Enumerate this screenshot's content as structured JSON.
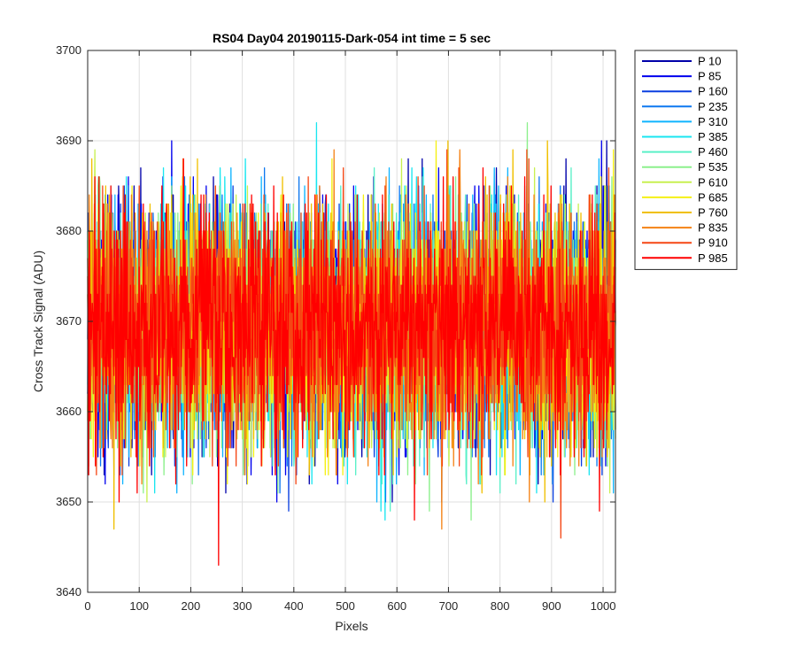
{
  "chart_data": {
    "type": "line",
    "title": "RS04 Day04 20190115-Dark-054 int time = 5 sec",
    "xlabel": "Pixels",
    "ylabel": "Cross Track Signal (ADU)",
    "xlim": [
      0,
      1024
    ],
    "ylim": [
      3640,
      3700
    ],
    "xticks": [
      0,
      100,
      200,
      300,
      400,
      500,
      600,
      700,
      800,
      900,
      1000
    ],
    "yticks": [
      3640,
      3650,
      3660,
      3670,
      3680,
      3690,
      3700
    ],
    "xtick_labels": [
      "0",
      "100",
      "200",
      "300",
      "400",
      "500",
      "600",
      "700",
      "800",
      "900",
      "1000"
    ],
    "ytick_labels": [
      "3640",
      "3650",
      "3660",
      "3670",
      "3680",
      "3690",
      "3700"
    ],
    "grid": true,
    "legend_position": "outside-top-right",
    "noise": {
      "mean": 3669.5,
      "std": 6.5,
      "n_points": 1025,
      "min": 3640,
      "max": 3699
    },
    "series": [
      {
        "name": "P 10",
        "color": "#0000aa",
        "seed": 11
      },
      {
        "name": "P 85",
        "color": "#0000ee",
        "seed": 23
      },
      {
        "name": "P 160",
        "color": "#0a3fe0",
        "seed": 37
      },
      {
        "name": "P 235",
        "color": "#0e78f0",
        "seed": 41
      },
      {
        "name": "P 310",
        "color": "#0fb4ff",
        "seed": 53
      },
      {
        "name": "P 385",
        "color": "#19e6f0",
        "seed": 67
      },
      {
        "name": "P 460",
        "color": "#5af0c8",
        "seed": 71
      },
      {
        "name": "P 535",
        "color": "#8cf08c",
        "seed": 83
      },
      {
        "name": "P 610",
        "color": "#c8f050",
        "seed": 97
      },
      {
        "name": "P 685",
        "color": "#f5f014",
        "seed": 101
      },
      {
        "name": "P 760",
        "color": "#f0c000",
        "seed": 113
      },
      {
        "name": "P 835",
        "color": "#f58214",
        "seed": 127
      },
      {
        "name": "P 910",
        "color": "#f54614",
        "seed": 131
      },
      {
        "name": "P 985",
        "color": "#ff0000",
        "seed": 139
      }
    ]
  }
}
